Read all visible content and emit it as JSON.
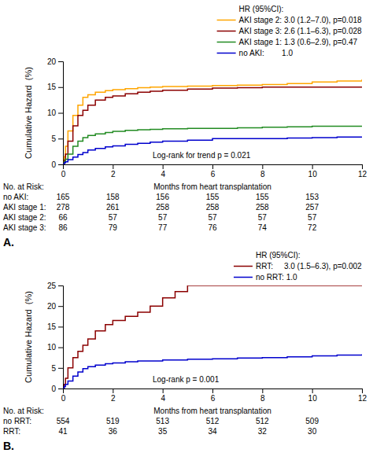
{
  "chart_data": [
    {
      "type": "step",
      "title": "A.",
      "ylabel": "Cumulative Hazard  (%)",
      "xlabel": "Months from heart transplantation",
      "annotations": [
        "Log-rank for trend p = 0.021",
        "HR (95%CI):"
      ],
      "xlim": [
        0,
        12
      ],
      "ylim": [
        0,
        20
      ],
      "xticks": [
        0,
        2,
        4,
        6,
        8,
        10,
        12
      ],
      "yticks": [
        0,
        5,
        10,
        15,
        20
      ],
      "grid": false,
      "legend": "upper right",
      "series": [
        {
          "name": "AKI stage 2: 3.0 (1.2–7.0), p=0.018",
          "color": "#FFA500",
          "x": [
            0,
            0.05,
            0.1,
            0.2,
            0.4,
            0.6,
            0.8,
            1.0,
            1.3,
            1.7,
            2.0,
            2.5,
            3.0,
            3.5,
            4.0,
            5.0,
            6.0,
            7.0,
            8.0,
            9.0,
            10.0,
            11.0,
            12.0
          ],
          "values": [
            0,
            1.5,
            3.5,
            6.5,
            9.5,
            11.5,
            13.0,
            13.5,
            14.0,
            14.3,
            14.5,
            14.7,
            14.9,
            15.0,
            15.1,
            15.2,
            15.3,
            15.4,
            15.5,
            15.7,
            16.0,
            16.2,
            16.5
          ]
        },
        {
          "name": "AKI stage 3: 2.6 (1.1–6.3), p=0.028",
          "color": "#8B0000",
          "x": [
            0,
            0.05,
            0.1,
            0.2,
            0.4,
            0.6,
            0.8,
            1.0,
            1.3,
            1.7,
            2.0,
            2.5,
            3.0,
            3.5,
            4.0,
            5.0,
            6.0,
            7.0,
            8.0,
            9.0,
            10.0,
            11.0,
            12.0
          ],
          "values": [
            0,
            0.8,
            2.0,
            4.5,
            7.5,
            9.5,
            10.5,
            11.5,
            12.5,
            13.0,
            13.3,
            13.7,
            14.0,
            14.2,
            14.4,
            14.6,
            14.8,
            14.9,
            15.0,
            15.0,
            15.0,
            15.0,
            15.0
          ]
        },
        {
          "name": "AKI stage 1: 1.3 (0.6–2.9), p=0.47",
          "color": "#228B22",
          "x": [
            0,
            0.05,
            0.1,
            0.2,
            0.4,
            0.6,
            0.8,
            1.0,
            1.3,
            1.7,
            2.0,
            2.5,
            3.0,
            3.5,
            4.0,
            5.0,
            6.0,
            7.0,
            8.0,
            9.0,
            10.0,
            11.0,
            12.0
          ],
          "values": [
            0,
            0.5,
            1.0,
            2.0,
            3.5,
            4.5,
            5.2,
            5.6,
            5.9,
            6.2,
            6.4,
            6.6,
            6.7,
            6.8,
            6.9,
            7.0,
            7.0,
            7.1,
            7.2,
            7.3,
            7.4,
            7.4,
            7.5
          ]
        },
        {
          "name": "no AKI:        1.0",
          "color": "#0000CD",
          "x": [
            0,
            0.05,
            0.1,
            0.2,
            0.4,
            0.6,
            0.8,
            1.0,
            1.3,
            1.7,
            2.0,
            2.5,
            3.0,
            3.5,
            4.0,
            5.0,
            6.0,
            7.0,
            8.0,
            9.0,
            10.0,
            11.0,
            12.0
          ],
          "values": [
            0,
            0.3,
            0.5,
            0.9,
            1.4,
            1.9,
            2.3,
            2.8,
            3.1,
            3.4,
            3.6,
            3.9,
            4.1,
            4.3,
            4.5,
            4.7,
            5.0,
            5.0,
            5.0,
            5.1,
            5.2,
            5.3,
            5.4
          ]
        }
      ],
      "risk_table": {
        "header": "No. at Risk:",
        "times": [
          0,
          2,
          4,
          6,
          8,
          10
        ],
        "rows": [
          {
            "label": "no AKI:",
            "values": [
              165,
              158,
              156,
              155,
              155,
              153
            ]
          },
          {
            "label": "AKI stage 1:",
            "values": [
              278,
              261,
              258,
              258,
              258,
              257
            ]
          },
          {
            "label": "AKI stage 2:",
            "values": [
              66,
              57,
              57,
              57,
              57,
              57
            ]
          },
          {
            "label": "AKI stage 3:",
            "values": [
              86,
              79,
              77,
              76,
              74,
              72
            ]
          }
        ]
      }
    },
    {
      "type": "step",
      "title": "B.",
      "ylabel": "Cumulative Hazard  (%)",
      "xlabel": "Months from heart transplantation",
      "annotations": [
        "Log-rank p = 0.001",
        "HR (95%CI):"
      ],
      "xlim": [
        0,
        12
      ],
      "ylim": [
        0,
        25
      ],
      "xticks": [
        0,
        2,
        4,
        6,
        8,
        10,
        12
      ],
      "yticks": [
        0,
        5,
        10,
        15,
        20,
        25
      ],
      "grid": false,
      "legend": "upper right",
      "series": [
        {
          "name": "RRT:     3.0 (1.5–6.3), p=0.002",
          "color": "#8B0000",
          "x": [
            0,
            0.05,
            0.1,
            0.2,
            0.4,
            0.6,
            0.8,
            1.0,
            1.3,
            1.7,
            2.0,
            2.5,
            3.0,
            3.5,
            4.0,
            4.5,
            5.0,
            6.0,
            7.0,
            8.0,
            9.0,
            10.0,
            11.0,
            12.0
          ],
          "values": [
            0,
            1.0,
            2.5,
            5.0,
            7.5,
            9.0,
            10.5,
            12.0,
            14.0,
            15.5,
            16.5,
            17.5,
            18.5,
            20.0,
            22.0,
            23.5,
            25.0,
            25.0,
            25.0,
            25.0,
            25.0,
            25.0,
            25.0,
            25.0
          ]
        },
        {
          "name": "no RRT: 1.0",
          "color": "#0000CD",
          "x": [
            0,
            0.05,
            0.1,
            0.2,
            0.4,
            0.6,
            0.8,
            1.0,
            1.3,
            1.7,
            2.0,
            2.5,
            3.0,
            4.0,
            5.0,
            6.0,
            7.0,
            8.0,
            9.0,
            10.0,
            11.0,
            12.0
          ],
          "values": [
            0,
            0.5,
            1.0,
            1.8,
            3.0,
            4.0,
            4.8,
            5.3,
            5.7,
            6.0,
            6.2,
            6.5,
            6.7,
            6.9,
            7.1,
            7.2,
            7.4,
            7.5,
            7.7,
            7.9,
            8.1,
            8.3
          ]
        }
      ],
      "risk_table": {
        "header": "No. at Risk:",
        "times": [
          0,
          2,
          4,
          6,
          8,
          10
        ],
        "rows": [
          {
            "label": "no RRT:",
            "values": [
              554,
              519,
              513,
              512,
              512,
              509
            ]
          },
          {
            "label": "RRT:",
            "values": [
              41,
              36,
              35,
              34,
              32,
              30
            ]
          }
        ]
      }
    }
  ]
}
